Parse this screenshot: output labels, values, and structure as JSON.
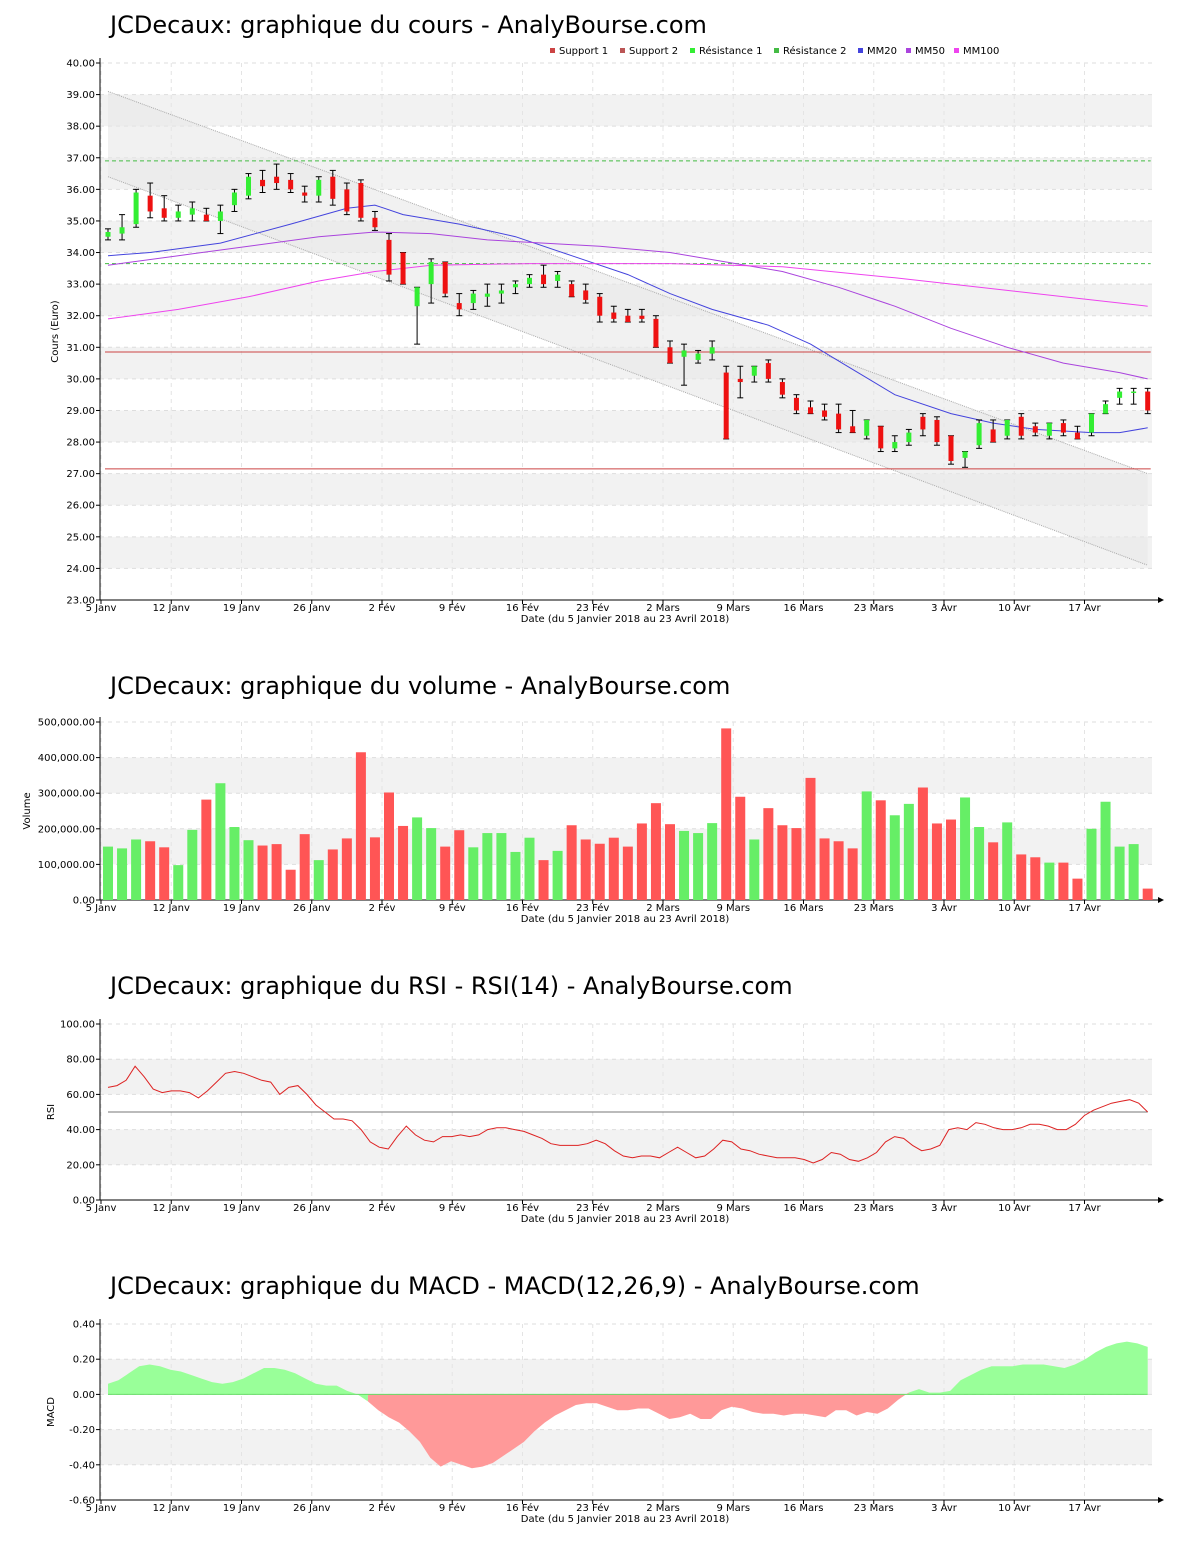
{
  "colors": {
    "up": "#33ee33",
    "down": "#ee1111",
    "vol_up": "#66ee66",
    "vol_down": "#ff5555",
    "support": "#cc4444",
    "resistance": "#44bb44",
    "mm20": "#4444dd",
    "mm50": "#aa44dd",
    "mm100": "#ee44ee",
    "rsi": "#dd2222",
    "macd_pos": "#99ff99",
    "macd_neg": "#ff9999"
  },
  "xaxis": {
    "label": "Date (du 5 Janvier 2018 au 23 Avril 2018)",
    "ticks": [
      {
        "i": 0,
        "label": "5 Janv"
      },
      {
        "i": 5,
        "label": "12 Janv"
      },
      {
        "i": 10,
        "label": "19 Janv"
      },
      {
        "i": 15,
        "label": "26 Janv"
      },
      {
        "i": 20,
        "label": "2 Fév"
      },
      {
        "i": 25,
        "label": "9 Fév"
      },
      {
        "i": 30,
        "label": "16 Fév"
      },
      {
        "i": 35,
        "label": "23 Fév"
      },
      {
        "i": 40,
        "label": "2 Mars"
      },
      {
        "i": 45,
        "label": "9 Mars"
      },
      {
        "i": 50,
        "label": "16 Mars"
      },
      {
        "i": 55,
        "label": "23 Mars"
      },
      {
        "i": 60,
        "label": "3 Avr"
      },
      {
        "i": 65,
        "label": "10 Avr"
      },
      {
        "i": 70,
        "label": "17 Avr"
      }
    ]
  },
  "chart_data": [
    {
      "type": "candlestick",
      "title": "JCDecaux: graphique du cours - AnalyBourse.com",
      "ylabel": "Cours (Euro)",
      "ylim": [
        23,
        40
      ],
      "yticks": [
        "23.00",
        "24.00",
        "25.00",
        "26.00",
        "27.00",
        "28.00",
        "29.00",
        "30.00",
        "31.00",
        "32.00",
        "33.00",
        "34.00",
        "35.00",
        "36.00",
        "37.00",
        "38.00",
        "39.00",
        "40.00"
      ],
      "legend": [
        "Support 1",
        "Support 2",
        "Résistance 1",
        "Résistance 2",
        "MM20",
        "MM50",
        "MM100"
      ],
      "support1": 30.85,
      "support2": 27.15,
      "resistance1": 36.9,
      "resistance2": 33.65,
      "ohlc": [
        [
          34.5,
          34.75,
          34.4,
          34.65
        ],
        [
          34.6,
          35.2,
          34.4,
          34.8
        ],
        [
          34.9,
          36.0,
          34.8,
          35.9
        ],
        [
          35.8,
          36.2,
          35.1,
          35.3
        ],
        [
          35.4,
          35.8,
          35.0,
          35.1
        ],
        [
          35.1,
          35.5,
          35.0,
          35.3
        ],
        [
          35.2,
          35.6,
          35.0,
          35.4
        ],
        [
          35.2,
          35.4,
          35.0,
          35.0
        ],
        [
          35.0,
          35.5,
          34.6,
          35.3
        ],
        [
          35.5,
          36.0,
          35.3,
          35.9
        ],
        [
          35.8,
          36.5,
          35.7,
          36.4
        ],
        [
          36.3,
          36.6,
          35.9,
          36.1
        ],
        [
          36.4,
          36.8,
          36.0,
          36.2
        ],
        [
          36.3,
          36.5,
          35.9,
          36.0
        ],
        [
          35.9,
          36.1,
          35.6,
          35.8
        ],
        [
          35.8,
          36.4,
          35.6,
          36.3
        ],
        [
          36.4,
          36.6,
          35.5,
          35.7
        ],
        [
          36.0,
          36.2,
          35.2,
          35.3
        ],
        [
          36.2,
          36.3,
          35.0,
          35.1
        ],
        [
          35.1,
          35.3,
          34.7,
          34.8
        ],
        [
          34.4,
          34.6,
          33.1,
          33.3
        ],
        [
          34.0,
          34.0,
          33.0,
          33.0
        ],
        [
          32.3,
          32.9,
          31.1,
          32.9
        ],
        [
          33.0,
          33.8,
          32.4,
          33.7
        ],
        [
          33.7,
          33.7,
          32.6,
          32.7
        ],
        [
          32.4,
          32.7,
          32.0,
          32.2
        ],
        [
          32.4,
          32.8,
          32.2,
          32.7
        ],
        [
          32.6,
          33.0,
          32.3,
          32.7
        ],
        [
          32.7,
          33.0,
          32.4,
          32.8
        ],
        [
          32.9,
          33.1,
          32.7,
          33.0
        ],
        [
          33.0,
          33.3,
          32.9,
          33.2
        ],
        [
          33.3,
          33.6,
          32.9,
          33.0
        ],
        [
          33.1,
          33.4,
          32.9,
          33.3
        ],
        [
          33.0,
          33.1,
          32.6,
          32.6
        ],
        [
          32.8,
          33.0,
          32.4,
          32.5
        ],
        [
          32.6,
          32.7,
          31.8,
          32.0
        ],
        [
          32.1,
          32.3,
          31.8,
          31.9
        ],
        [
          32.0,
          32.2,
          31.8,
          31.8
        ],
        [
          32.0,
          32.2,
          31.8,
          31.9
        ],
        [
          31.9,
          32.0,
          31.0,
          31.0
        ],
        [
          31.0,
          31.2,
          30.5,
          30.5
        ],
        [
          30.7,
          31.1,
          29.8,
          30.9
        ],
        [
          30.6,
          30.9,
          30.5,
          30.8
        ],
        [
          30.8,
          31.2,
          30.6,
          31.0
        ],
        [
          30.2,
          30.4,
          28.1,
          28.1
        ],
        [
          30.0,
          30.4,
          29.4,
          29.9
        ],
        [
          30.1,
          30.4,
          29.9,
          30.4
        ],
        [
          30.5,
          30.6,
          29.9,
          30.0
        ],
        [
          29.9,
          30.0,
          29.4,
          29.5
        ],
        [
          29.4,
          29.5,
          28.9,
          29.0
        ],
        [
          29.1,
          29.3,
          28.9,
          28.9
        ],
        [
          29.0,
          29.2,
          28.7,
          28.8
        ],
        [
          28.9,
          29.2,
          28.3,
          28.4
        ],
        [
          28.5,
          29.0,
          28.3,
          28.3
        ],
        [
          28.2,
          28.7,
          28.1,
          28.7
        ],
        [
          28.5,
          28.5,
          27.7,
          27.8
        ],
        [
          27.8,
          28.2,
          27.7,
          28.0
        ],
        [
          28.0,
          28.4,
          27.9,
          28.3
        ],
        [
          28.8,
          28.9,
          28.2,
          28.4
        ],
        [
          28.7,
          28.8,
          27.9,
          28.0
        ],
        [
          28.2,
          28.2,
          27.3,
          27.4
        ],
        [
          27.5,
          27.7,
          27.2,
          27.7
        ],
        [
          27.9,
          28.7,
          27.8,
          28.6
        ],
        [
          28.4,
          28.7,
          28.0,
          28.0
        ],
        [
          28.2,
          28.7,
          28.1,
          28.7
        ],
        [
          28.8,
          28.9,
          28.1,
          28.2
        ],
        [
          28.5,
          28.6,
          28.2,
          28.3
        ],
        [
          28.2,
          28.6,
          28.1,
          28.6
        ],
        [
          28.6,
          28.7,
          28.2,
          28.3
        ],
        [
          28.3,
          28.5,
          28.1,
          28.1
        ],
        [
          28.3,
          28.9,
          28.2,
          28.9
        ],
        [
          28.9,
          29.3,
          28.9,
          29.2
        ],
        [
          29.4,
          29.7,
          29.2,
          29.6
        ],
        [
          29.6,
          29.7,
          29.2,
          29.6
        ],
        [
          29.6,
          29.7,
          28.9,
          29.0
        ]
      ],
      "mm20": [
        [
          0,
          33.9
        ],
        [
          3,
          34.0
        ],
        [
          8,
          34.3
        ],
        [
          13,
          34.9
        ],
        [
          17,
          35.4
        ],
        [
          19,
          35.5
        ],
        [
          21,
          35.2
        ],
        [
          25,
          34.9
        ],
        [
          29,
          34.5
        ],
        [
          33,
          33.9
        ],
        [
          37,
          33.3
        ],
        [
          40,
          32.7
        ],
        [
          43,
          32.2
        ],
        [
          47,
          31.7
        ],
        [
          50,
          31.1
        ],
        [
          53,
          30.3
        ],
        [
          56,
          29.5
        ],
        [
          60,
          28.9
        ],
        [
          63,
          28.6
        ],
        [
          66,
          28.4
        ],
        [
          70,
          28.3
        ],
        [
          72,
          28.3
        ],
        [
          74,
          28.45
        ]
      ],
      "mm50": [
        [
          0,
          33.6
        ],
        [
          5,
          33.9
        ],
        [
          10,
          34.2
        ],
        [
          15,
          34.5
        ],
        [
          19,
          34.65
        ],
        [
          23,
          34.6
        ],
        [
          27,
          34.4
        ],
        [
          31,
          34.3
        ],
        [
          35,
          34.2
        ],
        [
          40,
          34.0
        ],
        [
          44,
          33.7
        ],
        [
          48,
          33.4
        ],
        [
          52,
          32.9
        ],
        [
          56,
          32.3
        ],
        [
          60,
          31.6
        ],
        [
          64,
          31.0
        ],
        [
          68,
          30.5
        ],
        [
          72,
          30.2
        ],
        [
          74,
          30.0
        ]
      ],
      "mm100": [
        [
          0,
          31.9
        ],
        [
          5,
          32.2
        ],
        [
          10,
          32.6
        ],
        [
          15,
          33.1
        ],
        [
          19,
          33.4
        ],
        [
          23,
          33.6
        ],
        [
          30,
          33.65
        ],
        [
          40,
          33.65
        ],
        [
          48,
          33.55
        ],
        [
          56,
          33.2
        ],
        [
          64,
          32.8
        ],
        [
          70,
          32.5
        ],
        [
          74,
          32.3
        ]
      ],
      "channel_upper": [
        [
          0,
          39.1
        ],
        [
          74,
          27.0
        ]
      ],
      "channel_lower": [
        [
          0,
          36.4
        ],
        [
          74,
          24.1
        ]
      ]
    },
    {
      "type": "bar",
      "title": "JCDecaux: graphique du volume - AnalyBourse.com",
      "ylabel": "Volume",
      "ylim": [
        0,
        500000
      ],
      "yticks": [
        "0.00",
        "100,000.00",
        "200,000.00",
        "300,000.00",
        "400,000.00",
        "500,000.00"
      ],
      "values": [
        150000,
        145000,
        170000,
        165000,
        148000,
        98000,
        197000,
        282000,
        328000,
        205000,
        168000,
        153000,
        157000,
        85000,
        185000,
        112000,
        142000,
        173000,
        415000,
        176000,
        302000,
        208000,
        232000,
        202000,
        150000,
        196000,
        148000,
        188000,
        188000,
        135000,
        175000,
        112000,
        138000,
        210000,
        170000,
        158000,
        175000,
        150000,
        215000,
        272000,
        213000,
        194000,
        188000,
        216000,
        482000,
        290000,
        170000,
        258000,
        210000,
        202000,
        343000,
        173000,
        165000,
        145000,
        305000,
        280000,
        238000,
        270000,
        316000,
        215000,
        226000,
        288000,
        205000,
        162000,
        218000,
        128000,
        120000,
        105000,
        105000,
        60000,
        200000,
        276000,
        150000,
        157000,
        32000
      ]
    },
    {
      "type": "line",
      "title": "JCDecaux: graphique du RSI - RSI(14) - AnalyBourse.com",
      "ylabel": "RSI",
      "ylim": [
        0,
        100
      ],
      "yticks": [
        "0.00",
        "20.00",
        "40.00",
        "60.00",
        "80.00",
        "100.00"
      ],
      "reference": 50,
      "values": [
        64,
        65,
        68,
        76,
        70,
        63,
        61,
        62,
        62,
        61,
        58,
        62,
        67,
        72,
        73,
        72,
        70,
        68,
        67,
        60,
        64,
        65,
        60,
        54,
        50,
        46,
        46,
        45,
        40,
        33,
        30,
        29,
        36,
        42,
        37,
        34,
        33,
        36,
        36,
        37,
        36,
        37,
        40,
        41,
        41,
        40,
        39,
        37,
        35,
        32,
        31,
        31,
        31,
        32,
        34,
        32,
        28,
        25,
        24,
        25,
        25,
        24,
        27,
        30,
        27,
        24,
        25,
        29,
        34,
        33,
        29,
        28,
        26,
        25,
        24,
        24,
        24,
        23,
        21,
        23,
        27,
        26,
        23,
        22,
        24,
        27,
        33,
        36,
        35,
        31,
        28,
        29,
        31,
        40,
        41,
        40,
        44,
        43,
        41,
        40,
        40,
        41,
        43,
        43,
        42,
        40,
        40,
        43,
        48,
        51,
        53,
        55,
        56,
        57,
        55,
        50
      ],
      "raw_count": 116
    },
    {
      "type": "area",
      "title": "JCDecaux: graphique du MACD - MACD(12,26,9) - AnalyBourse.com",
      "ylabel": "MACD",
      "ylim": [
        -0.6,
        0.4
      ],
      "yticks": [
        "-0.60",
        "-0.40",
        "-0.20",
        "0.00",
        "0.20",
        "0.40"
      ],
      "values": [
        0.06,
        0.08,
        0.12,
        0.16,
        0.17,
        0.16,
        0.14,
        0.13,
        0.11,
        0.09,
        0.07,
        0.06,
        0.07,
        0.09,
        0.12,
        0.15,
        0.15,
        0.14,
        0.12,
        0.09,
        0.06,
        0.05,
        0.05,
        0.02,
        0.0,
        -0.04,
        -0.09,
        -0.13,
        -0.16,
        -0.21,
        -0.27,
        -0.36,
        -0.41,
        -0.38,
        -0.4,
        -0.42,
        -0.41,
        -0.39,
        -0.35,
        -0.31,
        -0.27,
        -0.21,
        -0.16,
        -0.12,
        -0.09,
        -0.06,
        -0.05,
        -0.05,
        -0.07,
        -0.09,
        -0.09,
        -0.08,
        -0.08,
        -0.11,
        -0.14,
        -0.13,
        -0.11,
        -0.14,
        -0.14,
        -0.09,
        -0.07,
        -0.08,
        -0.1,
        -0.11,
        -0.11,
        -0.12,
        -0.11,
        -0.11,
        -0.12,
        -0.13,
        -0.09,
        -0.09,
        -0.12,
        -0.1,
        -0.11,
        -0.08,
        -0.03,
        0.01,
        0.03,
        0.01,
        0.01,
        0.02,
        0.08,
        0.11,
        0.14,
        0.16,
        0.16,
        0.16,
        0.17,
        0.17,
        0.17,
        0.16,
        0.15,
        0.17,
        0.2,
        0.24,
        0.27,
        0.29,
        0.3,
        0.29,
        0.27
      ]
    }
  ]
}
